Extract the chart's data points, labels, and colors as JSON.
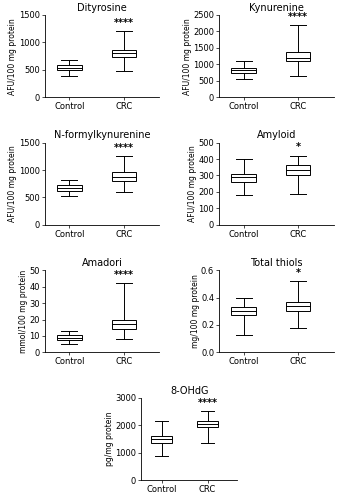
{
  "plots": [
    {
      "title": "Dityrosine",
      "ylabel": "AFU/100 mg protein",
      "ylim": [
        0,
        1500
      ],
      "yticks": [
        0,
        500,
        1000,
        1500
      ],
      "significance": "****",
      "control": {
        "whisker_low": 390,
        "q1": 490,
        "median": 540,
        "q3": 580,
        "whisker_high": 680
      },
      "crc": {
        "whisker_low": 480,
        "q1": 730,
        "median": 810,
        "q3": 870,
        "whisker_high": 1200
      }
    },
    {
      "title": "Kynurenine",
      "ylabel": "AFU/100 mg protein",
      "ylim": [
        0,
        2500
      ],
      "yticks": [
        0,
        500,
        1000,
        1500,
        2000,
        2500
      ],
      "significance": "****",
      "control": {
        "whisker_low": 560,
        "q1": 730,
        "median": 830,
        "q3": 890,
        "whisker_high": 1100
      },
      "crc": {
        "whisker_low": 660,
        "q1": 1100,
        "median": 1200,
        "q3": 1380,
        "whisker_high": 2200
      }
    },
    {
      "title": "N-formylkynurenine",
      "ylabel": "AFU/100 mg protein",
      "ylim": [
        0,
        1500
      ],
      "yticks": [
        0,
        500,
        1000,
        1500
      ],
      "significance": "****",
      "control": {
        "whisker_low": 530,
        "q1": 620,
        "median": 680,
        "q3": 730,
        "whisker_high": 820
      },
      "crc": {
        "whisker_low": 600,
        "q1": 800,
        "median": 880,
        "q3": 960,
        "whisker_high": 1250
      }
    },
    {
      "title": "Amyloid",
      "ylabel": "AFU/100 mg protein",
      "ylim": [
        0,
        500
      ],
      "yticks": [
        0,
        100,
        200,
        300,
        400,
        500
      ],
      "significance": "*",
      "control": {
        "whisker_low": 180,
        "q1": 260,
        "median": 290,
        "q3": 310,
        "whisker_high": 400
      },
      "crc": {
        "whisker_low": 185,
        "q1": 305,
        "median": 335,
        "q3": 365,
        "whisker_high": 420
      }
    },
    {
      "title": "Amadori",
      "ylabel": "mmol/100 mg protein",
      "ylim": [
        0,
        50
      ],
      "yticks": [
        0,
        10,
        20,
        30,
        40,
        50
      ],
      "significance": "****",
      "control": {
        "whisker_low": 5,
        "q1": 7.5,
        "median": 9,
        "q3": 10.5,
        "whisker_high": 13
      },
      "crc": {
        "whisker_low": 8,
        "q1": 14,
        "median": 17,
        "q3": 20,
        "whisker_high": 42
      }
    },
    {
      "title": "Total thiols",
      "ylabel": "mg/100 mg protein",
      "ylim": [
        0.0,
        0.6
      ],
      "yticks": [
        0.0,
        0.2,
        0.4,
        0.6
      ],
      "significance": "*",
      "control": {
        "whisker_low": 0.13,
        "q1": 0.27,
        "median": 0.3,
        "q3": 0.33,
        "whisker_high": 0.4
      },
      "crc": {
        "whisker_low": 0.18,
        "q1": 0.3,
        "median": 0.34,
        "q3": 0.37,
        "whisker_high": 0.52
      }
    },
    {
      "title": "8-OHdG",
      "ylabel": "pg/mg protein",
      "ylim": [
        0,
        3000
      ],
      "yticks": [
        0,
        1000,
        2000,
        3000
      ],
      "significance": "****",
      "control": {
        "whisker_low": 870,
        "q1": 1350,
        "median": 1480,
        "q3": 1600,
        "whisker_high": 2150
      },
      "crc": {
        "whisker_low": 1350,
        "q1": 1950,
        "median": 2050,
        "q3": 2150,
        "whisker_high": 2500
      }
    }
  ],
  "box_width": 0.45,
  "box_color": "white",
  "line_color": "black",
  "tick_labels": [
    "Control",
    "CRC"
  ],
  "sig_fontsize": 7,
  "title_fontsize": 7,
  "label_fontsize": 5.5,
  "tick_fontsize": 6
}
